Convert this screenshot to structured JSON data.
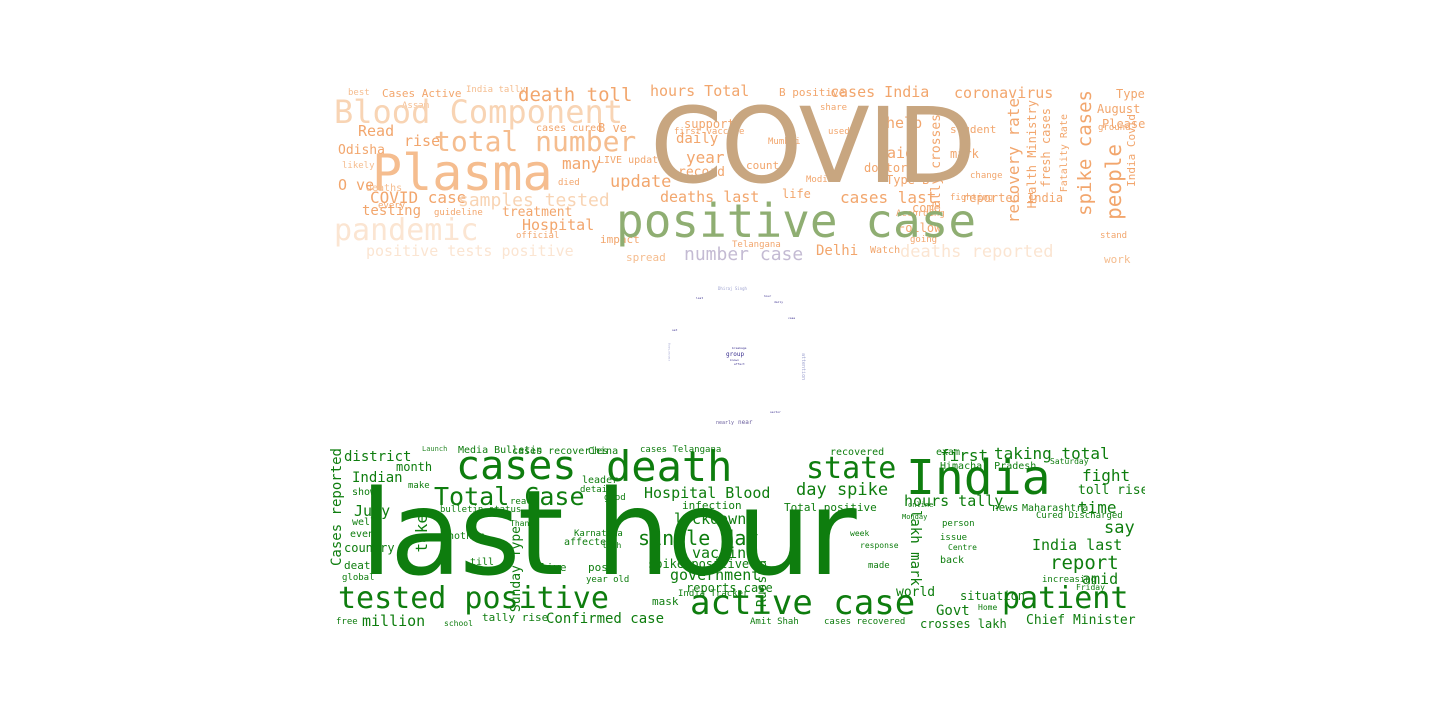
{
  "colors": {
    "covid": "#c8a680",
    "positive_case": "#8fae72",
    "orange_strong": "#f2a66d",
    "orange_mid": "#f5bd8f",
    "orange_light": "#f8d4b4",
    "orange_faint": "#fbe5d2",
    "number_case": "#c4bbd3",
    "purple_small": "#6b5f9e",
    "green": "#0e7d0e",
    "green_small": "#2e8b2e"
  },
  "top_cloud": {
    "covid": "COVID",
    "positive_case": "positive case",
    "plasma": "Plasma",
    "blood_component": "Blood Component",
    "total_number": "total number",
    "pandemic": "pandemic",
    "death_toll": "death toll",
    "hours_total": "hours Total",
    "cases_india": "cases India",
    "coronavirus": "coronavirus",
    "people": "people",
    "spike_cases": "spike cases",
    "samples_tested": "samples tested",
    "covid_case": "COVID case",
    "update": "update",
    "many": "many",
    "year": "year",
    "said": "said",
    "help": "help",
    "deaths_last": "deaths last",
    "cases_last": "cases last",
    "testing": "testing",
    "hospital": "Hospital",
    "treatment": "treatment",
    "rise": "rise",
    "read": "Read",
    "odisha": "Odisha",
    "delhi": "Delhi",
    "number_case": "number case",
    "deaths_reported": "deaths reported",
    "positive_tests_positive": "positive tests positive",
    "recovery_rate": "recovery rate",
    "tally_crosses": "tally crosses",
    "health_ministry": "Health Ministry",
    "fresh_cases": "fresh cases",
    "please": "Please",
    "august": "August",
    "type": "Type",
    "type_b": "Type B",
    "daily": "daily",
    "record": "record",
    "doctor": "doctor",
    "watch": "Watch",
    "follow": "Follow",
    "come": "come",
    "reported_india": "reported India",
    "cases_active": "Cases Active",
    "india_tally": "India tally",
    "support": "support",
    "b_positive": "B positive",
    "cases_cured": "cases cured",
    "b_ve": "B ve",
    "first_vaccine": "first vaccine",
    "count": "count",
    "life": "life",
    "live_update": "LIVE update",
    "impact": "impact",
    "official": "official",
    "spread": "spread",
    "work": "work",
    "student": "student",
    "mark": "mark",
    "india_covid": "India Covid",
    "o_ve": "O ve",
    "assam": "Assam",
    "best": "best",
    "guideline": "guideline",
    "died": "died",
    "modi": "Modi",
    "mumbai": "Mumbai",
    "used": "used",
    "share": "share",
    "deaths": "deaths",
    "every": "every",
    "likely": "likely",
    "going": "going",
    "according": "According",
    "telangana": "Telangana",
    "fighting": "fighting",
    "fatality_rate": "Fatality Rate",
    "ground": "ground",
    "stand": "stand",
    "change": "change"
  },
  "mid_cloud": {
    "dhiraj_singh": "Dhiraj Singh",
    "group": "group",
    "nearly": "nearly",
    "near": "near",
    "attention": "attention",
    "daily": "daily",
    "set": "set",
    "known": "known",
    "breakage": "breakage",
    "effect": "effect",
    "last": "last",
    "hour": "hour",
    "case": "case",
    "sector": "sector",
    "concerning": "concerning"
  },
  "bottom_cloud": {
    "last_hour": "last hour",
    "india": "India",
    "cases": "cases",
    "death": "death",
    "state": "state",
    "total_case": "Total Case",
    "tested_positive": "tested positive",
    "active_case": "active case",
    "patient": "patient",
    "single_day": "single day",
    "hospital_blood": "Hospital Blood",
    "day_spike": "day spike",
    "lockdown": "lockdown",
    "vaccine": "vaccine",
    "government": "government",
    "report": "report",
    "fight": "fight",
    "time": "time",
    "say": "say",
    "taking_total": "taking total",
    "first": "first",
    "toll_rises": "toll rises",
    "india_last": "India last",
    "amid": "amid",
    "district": "district",
    "indian": "Indian",
    "july": "July",
    "month": "month",
    "cases_reported": "Cases reported",
    "country": "country",
    "confirmed_case": "Confirmed case",
    "million": "million",
    "govt": "Govt",
    "chief_minister": "Chief Minister",
    "crosses_lakh": "crosses lakh",
    "situation": "situation",
    "world": "world",
    "hours_tally": "hours tally",
    "lakh_mark": "lakh mark",
    "russia": "Russia",
    "news": "news",
    "maharashtra": "Maharashtra",
    "total_positive": "Total positive",
    "reports_case": "reports case",
    "spike_positive": "spike positive",
    "infection": "infection",
    "mask": "mask",
    "tally_rise": "tally rise",
    "india_tracker": "India Tracker",
    "take": "take",
    "sunday_type": "Sunday Type",
    "media_bulletin": "Media Bulletin",
    "cases_recoveries": "cases recoveries",
    "china": "China",
    "cases_telangana": "cases Telangana",
    "himachal_pradesh": "Himachal Pradesh",
    "recovered": "recovered",
    "cured_discharged": "Cured Discharged",
    "increasing": "increasing",
    "death2": "death",
    "post": "post",
    "live": "live",
    "leader": "leader",
    "karnataka": "Karnataka",
    "affected": "affected",
    "bulletin_status": "bulletin status",
    "another": "another",
    "even": "even",
    "well": "well",
    "show": "show",
    "global": "global",
    "free": "free",
    "school": "school",
    "amit_shah": "Amit Shah",
    "cases_recovered": "cases recovered",
    "lakh": "lakh",
    "year_old": "year old",
    "made": "made",
    "back": "back",
    "person": "person",
    "issue": "issue",
    "centre": "Centre",
    "saturday": "Saturday",
    "friday": "Friday",
    "monday": "Monday",
    "home": "Home",
    "make": "make",
    "reach": "reach",
    "good": "good",
    "detail": "detail",
    "till": "till",
    "thanks": "Thanks",
    "week": "week",
    "response": "response",
    "exam": "exam",
    "online": "online",
    "launch": "Launch"
  }
}
